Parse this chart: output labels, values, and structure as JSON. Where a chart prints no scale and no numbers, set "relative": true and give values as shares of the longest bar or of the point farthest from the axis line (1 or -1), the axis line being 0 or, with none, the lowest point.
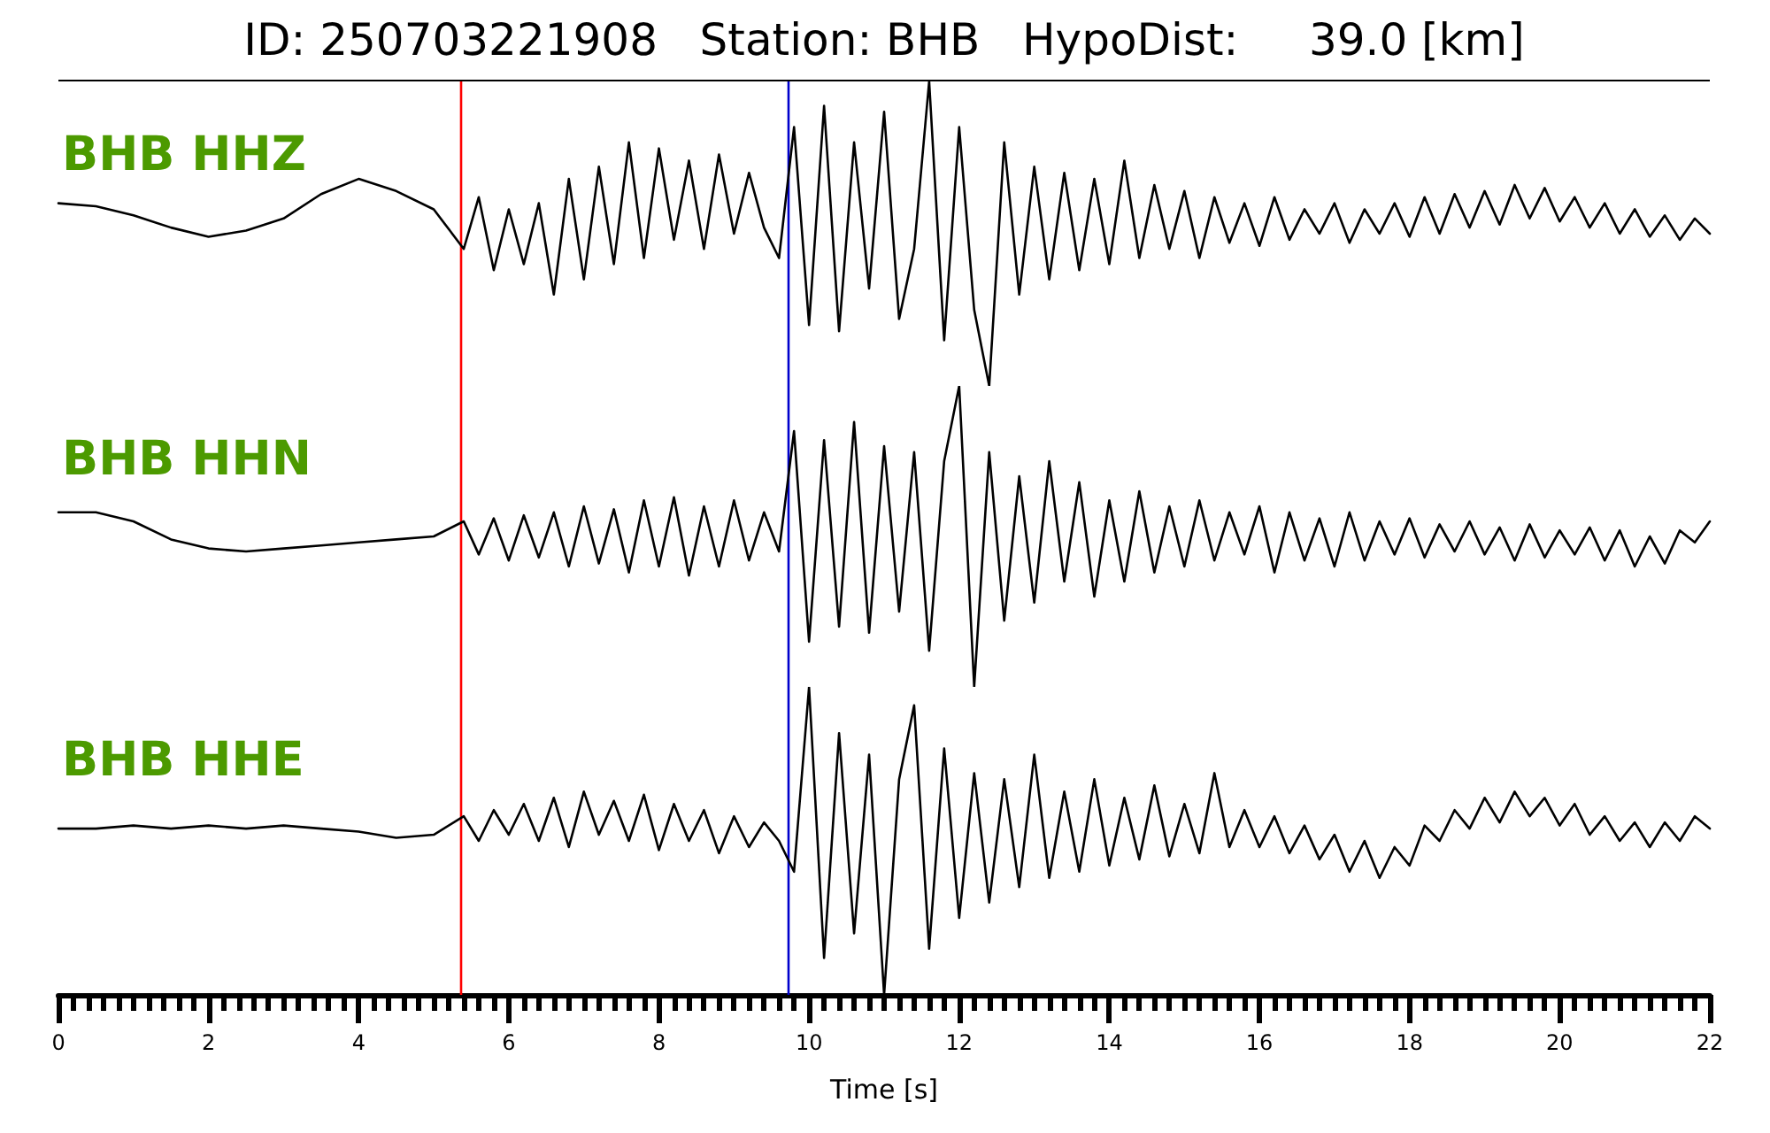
{
  "chart_data": [
    {
      "type": "line",
      "title": "ID: 250703221908   Station: BHB   HypoDist:     39.0 [km]",
      "annotations": [
        "BHB HHZ"
      ],
      "relative": true,
      "tick_labels": false,
      "xlim": [
        0,
        22
      ],
      "color": "#000000",
      "x": [
        0,
        0.5,
        1,
        1.5,
        2,
        2.5,
        3,
        3.5,
        4,
        4.5,
        5,
        5.4,
        5.6,
        5.8,
        6,
        6.2,
        6.4,
        6.6,
        6.8,
        7,
        7.2,
        7.4,
        7.6,
        7.8,
        8,
        8.2,
        8.4,
        8.6,
        8.8,
        9,
        9.2,
        9.4,
        9.6,
        9.8,
        10,
        10.2,
        10.4,
        10.6,
        10.8,
        11,
        11.2,
        11.4,
        11.6,
        11.8,
        12,
        12.2,
        12.4,
        12.6,
        12.8,
        13,
        13.2,
        13.4,
        13.6,
        13.8,
        14,
        14.2,
        14.4,
        14.6,
        14.8,
        15,
        15.2,
        15.4,
        15.6,
        15.8,
        16,
        16.2,
        16.4,
        16.6,
        16.8,
        17,
        17.2,
        17.4,
        17.6,
        17.8,
        18,
        18.2,
        18.4,
        18.6,
        18.8,
        19,
        19.2,
        19.4,
        19.6,
        19.8,
        20,
        20.2,
        20.4,
        20.6,
        20.8,
        21,
        21.2,
        21.4,
        21.6,
        21.8,
        22
      ],
      "values": [
        0.6,
        0.59,
        0.56,
        0.52,
        0.49,
        0.51,
        0.55,
        0.63,
        0.68,
        0.64,
        0.58,
        0.45,
        0.62,
        0.38,
        0.58,
        0.4,
        0.6,
        0.3,
        0.68,
        0.35,
        0.72,
        0.4,
        0.8,
        0.42,
        0.78,
        0.48,
        0.74,
        0.45,
        0.76,
        0.5,
        0.7,
        0.52,
        0.42,
        0.85,
        0.2,
        0.92,
        0.18,
        0.8,
        0.32,
        0.9,
        0.22,
        0.45,
        1.0,
        0.15,
        0.85,
        0.25,
        0.0,
        0.8,
        0.3,
        0.72,
        0.35,
        0.7,
        0.38,
        0.68,
        0.4,
        0.74,
        0.42,
        0.66,
        0.45,
        0.64,
        0.42,
        0.62,
        0.47,
        0.6,
        0.46,
        0.62,
        0.48,
        0.58,
        0.5,
        0.6,
        0.47,
        0.58,
        0.5,
        0.6,
        0.49,
        0.62,
        0.5,
        0.63,
        0.52,
        0.64,
        0.53,
        0.66,
        0.55,
        0.65,
        0.54,
        0.62,
        0.52,
        0.6,
        0.5,
        0.58,
        0.49,
        0.56,
        0.48,
        0.55,
        0.5
      ],
      "ref_lines": [
        {
          "axis": "x",
          "value": 5.35,
          "color": "#ff0000"
        },
        {
          "axis": "x",
          "value": 9.72,
          "color": "#0000cc"
        }
      ]
    },
    {
      "type": "line",
      "annotations": [
        "BHB HHN"
      ],
      "relative": true,
      "tick_labels": false,
      "xlim": [
        0,
        22
      ],
      "color": "#000000",
      "x": [
        0,
        0.5,
        1,
        1.5,
        2,
        2.5,
        3,
        3.5,
        4,
        4.5,
        5,
        5.4,
        5.6,
        5.8,
        6,
        6.2,
        6.4,
        6.6,
        6.8,
        7,
        7.2,
        7.4,
        7.6,
        7.8,
        8,
        8.2,
        8.4,
        8.6,
        8.8,
        9,
        9.2,
        9.4,
        9.6,
        9.8,
        10,
        10.2,
        10.4,
        10.6,
        10.8,
        11,
        11.2,
        11.4,
        11.6,
        11.8,
        12,
        12.2,
        12.4,
        12.6,
        12.8,
        13,
        13.2,
        13.4,
        13.6,
        13.8,
        14,
        14.2,
        14.4,
        14.6,
        14.8,
        15,
        15.2,
        15.4,
        15.6,
        15.8,
        16,
        16.2,
        16.4,
        16.6,
        16.8,
        17,
        17.2,
        17.4,
        17.6,
        17.8,
        18,
        18.2,
        18.4,
        18.6,
        18.8,
        19,
        19.2,
        19.4,
        19.6,
        19.8,
        20,
        20.2,
        20.4,
        20.6,
        20.8,
        21,
        21.2,
        21.4,
        21.6,
        21.8,
        22
      ],
      "values": [
        0.58,
        0.58,
        0.55,
        0.49,
        0.46,
        0.45,
        0.46,
        0.47,
        0.48,
        0.49,
        0.5,
        0.55,
        0.44,
        0.56,
        0.42,
        0.57,
        0.43,
        0.58,
        0.4,
        0.6,
        0.41,
        0.59,
        0.38,
        0.62,
        0.4,
        0.63,
        0.37,
        0.6,
        0.4,
        0.62,
        0.42,
        0.58,
        0.45,
        0.85,
        0.15,
        0.82,
        0.2,
        0.88,
        0.18,
        0.8,
        0.25,
        0.78,
        0.12,
        0.75,
        1.0,
        0.0,
        0.78,
        0.22,
        0.7,
        0.28,
        0.75,
        0.35,
        0.68,
        0.3,
        0.62,
        0.35,
        0.65,
        0.38,
        0.6,
        0.4,
        0.62,
        0.42,
        0.58,
        0.44,
        0.6,
        0.38,
        0.58,
        0.42,
        0.56,
        0.4,
        0.58,
        0.42,
        0.55,
        0.44,
        0.56,
        0.43,
        0.54,
        0.45,
        0.55,
        0.44,
        0.53,
        0.42,
        0.54,
        0.43,
        0.52,
        0.44,
        0.53,
        0.42,
        0.52,
        0.4,
        0.5,
        0.41,
        0.52,
        0.48,
        0.55
      ],
      "ref_lines": [
        {
          "axis": "x",
          "value": 5.35,
          "color": "#ff0000"
        },
        {
          "axis": "x",
          "value": 9.72,
          "color": "#0000cc"
        }
      ]
    },
    {
      "type": "line",
      "annotations": [
        "BHB HHE"
      ],
      "relative": true,
      "tick_labels": "x",
      "xlabel": "Time [s]",
      "xlim": [
        0,
        22
      ],
      "color": "#000000",
      "xticks": [
        0,
        {
          "value": 0.2,
          "label": null
        },
        {
          "value": 0.4,
          "label": null
        },
        {
          "value": 0.6,
          "label": null
        },
        {
          "value": 0.8,
          "label": null
        },
        {
          "value": 1,
          "label": null
        },
        {
          "value": 1.2,
          "label": null
        },
        {
          "value": 1.4,
          "label": null
        },
        {
          "value": 1.6,
          "label": null
        },
        {
          "value": 1.8,
          "label": null
        },
        2,
        {
          "value": 2.2,
          "label": null
        },
        {
          "value": 2.4,
          "label": null
        },
        {
          "value": 2.6,
          "label": null
        },
        {
          "value": 2.8,
          "label": null
        },
        {
          "value": 3,
          "label": null
        },
        {
          "value": 3.2,
          "label": null
        },
        {
          "value": 3.4,
          "label": null
        },
        {
          "value": 3.6,
          "label": null
        },
        {
          "value": 3.8,
          "label": null
        },
        4,
        {
          "value": 4.2,
          "label": null
        },
        {
          "value": 4.4,
          "label": null
        },
        {
          "value": 4.6,
          "label": null
        },
        {
          "value": 4.8,
          "label": null
        },
        {
          "value": 5,
          "label": null
        },
        {
          "value": 5.2,
          "label": null
        },
        {
          "value": 5.4,
          "label": null
        },
        {
          "value": 5.6,
          "label": null
        },
        {
          "value": 5.8,
          "label": null
        },
        6,
        {
          "value": 6.2,
          "label": null
        },
        {
          "value": 6.4,
          "label": null
        },
        {
          "value": 6.6,
          "label": null
        },
        {
          "value": 6.8,
          "label": null
        },
        {
          "value": 7,
          "label": null
        },
        {
          "value": 7.2,
          "label": null
        },
        {
          "value": 7.4,
          "label": null
        },
        {
          "value": 7.6,
          "label": null
        },
        {
          "value": 7.8,
          "label": null
        },
        8,
        {
          "value": 8.2,
          "label": null
        },
        {
          "value": 8.4,
          "label": null
        },
        {
          "value": 8.6,
          "label": null
        },
        {
          "value": 8.8,
          "label": null
        },
        {
          "value": 9,
          "label": null
        },
        {
          "value": 9.2,
          "label": null
        },
        {
          "value": 9.4,
          "label": null
        },
        {
          "value": 9.6,
          "label": null
        },
        {
          "value": 9.8,
          "label": null
        },
        10,
        {
          "value": 10.2,
          "label": null
        },
        {
          "value": 10.4,
          "label": null
        },
        {
          "value": 10.6,
          "label": null
        },
        {
          "value": 10.8,
          "label": null
        },
        {
          "value": 11,
          "label": null
        },
        {
          "value": 11.2,
          "label": null
        },
        {
          "value": 11.4,
          "label": null
        },
        {
          "value": 11.6,
          "label": null
        },
        {
          "value": 11.8,
          "label": null
        },
        12,
        {
          "value": 12.2,
          "label": null
        },
        {
          "value": 12.4,
          "label": null
        },
        {
          "value": 12.6,
          "label": null
        },
        {
          "value": 12.8,
          "label": null
        },
        {
          "value": 13,
          "label": null
        },
        {
          "value": 13.2,
          "label": null
        },
        {
          "value": 13.4,
          "label": null
        },
        {
          "value": 13.6,
          "label": null
        },
        {
          "value": 13.8,
          "label": null
        },
        14,
        {
          "value": 14.2,
          "label": null
        },
        {
          "value": 14.4,
          "label": null
        },
        {
          "value": 14.6,
          "label": null
        },
        {
          "value": 14.8,
          "label": null
        },
        {
          "value": 15,
          "label": null
        },
        {
          "value": 15.2,
          "label": null
        },
        {
          "value": 15.4,
          "label": null
        },
        {
          "value": 15.6,
          "label": null
        },
        {
          "value": 15.8,
          "label": null
        },
        16,
        {
          "value": 16.2,
          "label": null
        },
        {
          "value": 16.4,
          "label": null
        },
        {
          "value": 16.6,
          "label": null
        },
        {
          "value": 16.8,
          "label": null
        },
        {
          "value": 17,
          "label": null
        },
        {
          "value": 17.2,
          "label": null
        },
        {
          "value": 17.4,
          "label": null
        },
        {
          "value": 17.6,
          "label": null
        },
        {
          "value": 17.8,
          "label": null
        },
        18,
        {
          "value": 18.2,
          "label": null
        },
        {
          "value": 18.4,
          "label": null
        },
        {
          "value": 18.6,
          "label": null
        },
        {
          "value": 18.8,
          "label": null
        },
        {
          "value": 19,
          "label": null
        },
        {
          "value": 19.2,
          "label": null
        },
        {
          "value": 19.4,
          "label": null
        },
        {
          "value": 19.6,
          "label": null
        },
        {
          "value": 19.8,
          "label": null
        },
        20,
        {
          "value": 20.2,
          "label": null
        },
        {
          "value": 20.4,
          "label": null
        },
        {
          "value": 20.6,
          "label": null
        },
        {
          "value": 20.8,
          "label": null
        },
        {
          "value": 21,
          "label": null
        },
        {
          "value": 21.2,
          "label": null
        },
        {
          "value": 21.4,
          "label": null
        },
        {
          "value": 21.6,
          "label": null
        },
        {
          "value": 21.8,
          "label": null
        },
        22
      ],
      "x": [
        0,
        0.5,
        1,
        1.5,
        2,
        2.5,
        3,
        3.5,
        4,
        4.5,
        5,
        5.4,
        5.6,
        5.8,
        6,
        6.2,
        6.4,
        6.6,
        6.8,
        7,
        7.2,
        7.4,
        7.6,
        7.8,
        8,
        8.2,
        8.4,
        8.6,
        8.8,
        9,
        9.2,
        9.4,
        9.6,
        9.8,
        10,
        10.2,
        10.4,
        10.6,
        10.8,
        11,
        11.2,
        11.4,
        11.6,
        11.8,
        12,
        12.2,
        12.4,
        12.6,
        12.8,
        13,
        13.2,
        13.4,
        13.6,
        13.8,
        14,
        14.2,
        14.4,
        14.6,
        14.8,
        15,
        15.2,
        15.4,
        15.6,
        15.8,
        16,
        16.2,
        16.4,
        16.6,
        16.8,
        17,
        17.2,
        17.4,
        17.6,
        17.8,
        18,
        18.2,
        18.4,
        18.6,
        18.8,
        19,
        19.2,
        19.4,
        19.6,
        19.8,
        20,
        20.2,
        20.4,
        20.6,
        20.8,
        21,
        21.2,
        21.4,
        21.6,
        21.8,
        22
      ],
      "values": [
        0.54,
        0.54,
        0.55,
        0.54,
        0.55,
        0.54,
        0.55,
        0.54,
        0.53,
        0.51,
        0.52,
        0.58,
        0.5,
        0.6,
        0.52,
        0.62,
        0.5,
        0.64,
        0.48,
        0.66,
        0.52,
        0.63,
        0.5,
        0.65,
        0.47,
        0.62,
        0.5,
        0.6,
        0.46,
        0.58,
        0.48,
        0.56,
        0.5,
        0.4,
        1.0,
        0.12,
        0.85,
        0.2,
        0.78,
        0.0,
        0.7,
        0.94,
        0.15,
        0.8,
        0.25,
        0.72,
        0.3,
        0.7,
        0.35,
        0.78,
        0.38,
        0.66,
        0.4,
        0.7,
        0.42,
        0.64,
        0.44,
        0.68,
        0.45,
        0.62,
        0.46,
        0.72,
        0.48,
        0.6,
        0.48,
        0.58,
        0.46,
        0.55,
        0.44,
        0.52,
        0.4,
        0.5,
        0.38,
        0.48,
        0.42,
        0.55,
        0.5,
        0.6,
        0.54,
        0.64,
        0.56,
        0.66,
        0.58,
        0.64,
        0.55,
        0.62,
        0.52,
        0.58,
        0.5,
        0.56,
        0.48,
        0.56,
        0.5,
        0.58,
        0.54
      ],
      "ref_lines": [
        {
          "axis": "x",
          "value": 5.35,
          "color": "#ff0000"
        },
        {
          "axis": "x",
          "value": 9.72,
          "color": "#0000cc"
        }
      ]
    }
  ]
}
